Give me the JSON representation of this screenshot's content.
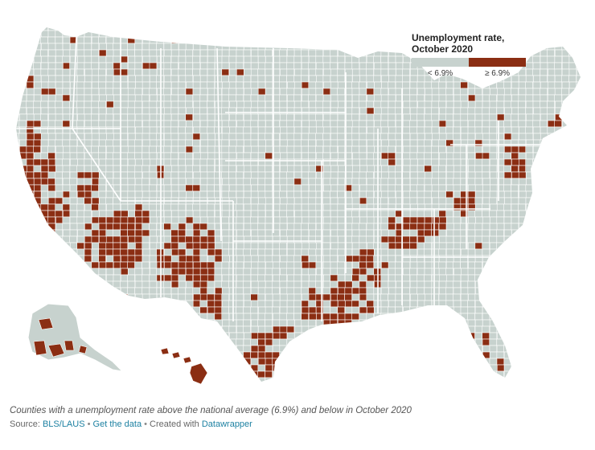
{
  "legend": {
    "title_line1": "Unemployment rate,",
    "title_line2": "October 2020",
    "categories": [
      {
        "label": "< 6.9%",
        "color": "#c7d2ce"
      },
      {
        "label": "≥ 6.9%",
        "color": "#8b2e13"
      }
    ]
  },
  "colors": {
    "below": "#c7d2ce",
    "above": "#8b2e13",
    "border": "#ffffff",
    "link": "#1d81a2"
  },
  "caption": "Counties with a unemployment rate above the national average (6.9%) and below in October 2020",
  "source": {
    "prefix": "Source: ",
    "source_link": "BLS/LAUS",
    "separator": " • ",
    "data_link": "Get the data",
    "created_text": "Created with ",
    "tool_link": "Datawrapper"
  }
}
